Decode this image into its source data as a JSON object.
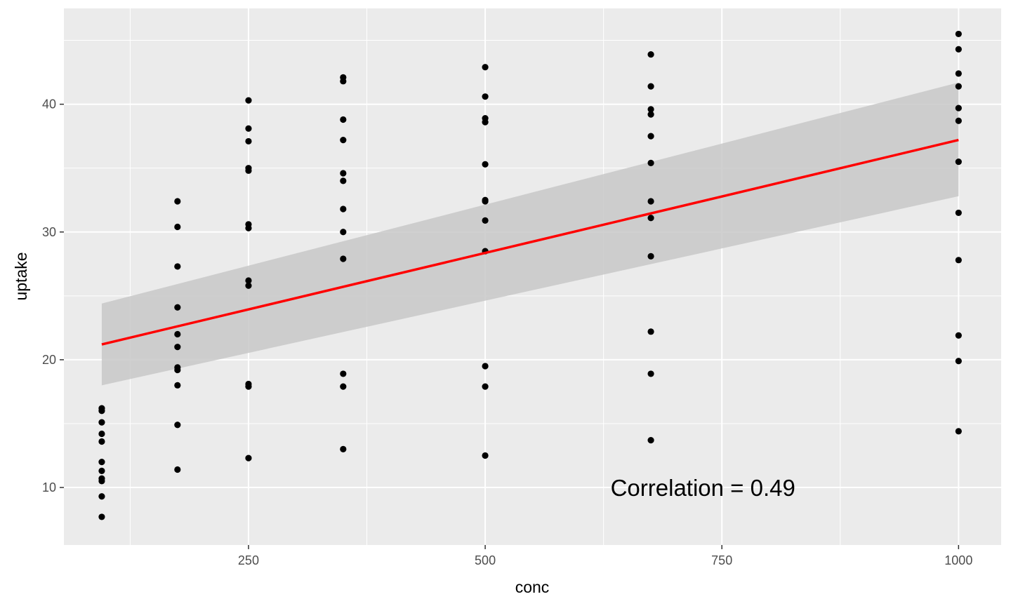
{
  "chart_data": {
    "type": "scatter",
    "xlabel": "conc",
    "ylabel": "uptake",
    "xlim": [
      55,
      1045
    ],
    "ylim": [
      5.5,
      47.5
    ],
    "x_ticks": [
      250,
      500,
      750,
      1000
    ],
    "y_ticks": [
      10,
      20,
      30,
      40
    ],
    "grid": true,
    "colors": {
      "panel": "#ebebeb",
      "grid": "#ffffff",
      "points": "#000000",
      "fit_line": "#ff0000",
      "confidence_band": "#c8c8c8"
    },
    "annotation": "Correlation = 0.49",
    "annotation_pos": {
      "x": 730,
      "y": 10.0
    },
    "fit": {
      "x": [
        95,
        1000
      ],
      "y": [
        21.2,
        37.2
      ]
    },
    "confidence_band": {
      "x": [
        95,
        1000
      ],
      "upper": [
        24.4,
        41.7
      ],
      "lower": [
        18.0,
        32.8
      ]
    },
    "points": [
      {
        "x": 95,
        "values": [
          16.2,
          16.0,
          15.1,
          14.2,
          13.6,
          12.0,
          11.3,
          10.7,
          10.5,
          9.3,
          7.7
        ]
      },
      {
        "x": 175,
        "values": [
          32.4,
          30.4,
          27.3,
          24.1,
          22.0,
          21.0,
          19.4,
          19.2,
          18.0,
          14.9,
          11.4
        ]
      },
      {
        "x": 250,
        "values": [
          40.3,
          38.1,
          37.1,
          35.0,
          34.8,
          30.6,
          30.3,
          26.2,
          25.8,
          18.1,
          17.9,
          12.3
        ]
      },
      {
        "x": 350,
        "values": [
          42.1,
          41.8,
          38.8,
          37.2,
          34.6,
          34.0,
          31.8,
          30.0,
          27.9,
          18.9,
          17.9,
          13.0
        ]
      },
      {
        "x": 500,
        "values": [
          42.9,
          40.6,
          38.9,
          38.6,
          35.3,
          32.5,
          32.4,
          30.9,
          28.5,
          19.5,
          17.9,
          12.5
        ]
      },
      {
        "x": 675,
        "values": [
          43.9,
          41.4,
          39.6,
          39.2,
          37.5,
          35.4,
          32.4,
          31.1,
          28.1,
          22.2,
          18.9,
          13.7
        ]
      },
      {
        "x": 1000,
        "values": [
          45.5,
          44.3,
          42.4,
          41.4,
          39.7,
          38.7,
          35.5,
          31.5,
          27.8,
          21.9,
          19.9,
          14.4
        ]
      }
    ]
  }
}
